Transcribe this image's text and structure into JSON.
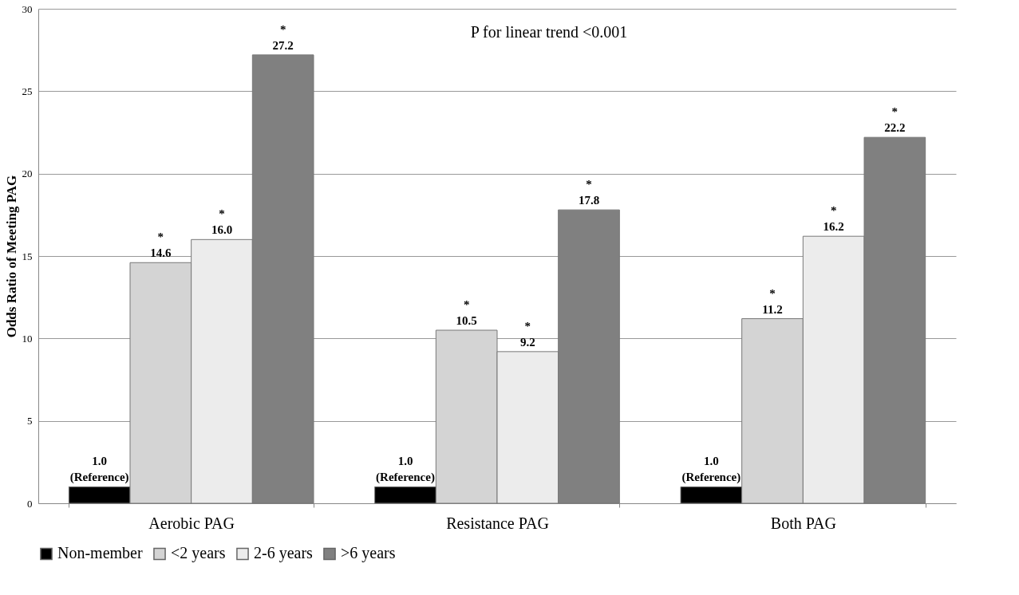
{
  "chart_data": {
    "type": "bar",
    "categories": [
      "Aerobic PAG",
      "Resistance PAG",
      "Both PAG"
    ],
    "ylabel": "Odds Ratio of Meeting PAG",
    "ylim": [
      0,
      30
    ],
    "yticks": [
      0,
      5,
      10,
      15,
      20,
      25,
      30
    ],
    "grid": "y",
    "legend": "bottom",
    "annotations": [
      "P for linear trend <0.001"
    ],
    "series": [
      {
        "name": "Non-member",
        "color": "#000000",
        "values": [
          1.0,
          1.0,
          1.0
        ],
        "value_labels": [
          "1.0\n(Reference)",
          "1.0\n(Reference)",
          "1.0\n(Reference)"
        ]
      },
      {
        "name": "<2 years",
        "color": "#d4d4d4",
        "values": [
          14.6,
          10.5,
          11.2
        ],
        "value_labels": [
          "*\n14.6",
          "*\n10.5",
          "*\n11.2"
        ]
      },
      {
        "name": "2-6 years",
        "color": "#ececec",
        "values": [
          16.0,
          9.2,
          16.2
        ],
        "value_labels": [
          "*\n16.0",
          "*\n9.2",
          "*\n16.2"
        ]
      },
      {
        "name": ">6 years",
        "color": "#808080",
        "values": [
          27.2,
          17.8,
          22.2
        ],
        "value_labels": [
          "*\n27.2",
          "*\n17.8",
          "*\n22.2"
        ]
      }
    ]
  }
}
